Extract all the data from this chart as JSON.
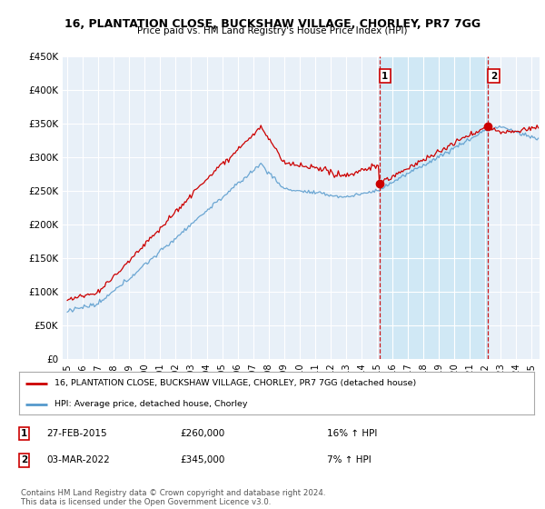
{
  "title": "16, PLANTATION CLOSE, BUCKSHAW VILLAGE, CHORLEY, PR7 7GG",
  "subtitle": "Price paid vs. HM Land Registry's House Price Index (HPI)",
  "legend_line1": "16, PLANTATION CLOSE, BUCKSHAW VILLAGE, CHORLEY, PR7 7GG (detached house)",
  "legend_line2": "HPI: Average price, detached house, Chorley",
  "annotation1_date": "27-FEB-2015",
  "annotation1_price": "£260,000",
  "annotation1_hpi": "16% ↑ HPI",
  "annotation2_date": "03-MAR-2022",
  "annotation2_price": "£345,000",
  "annotation2_hpi": "7% ↑ HPI",
  "footer": "Contains HM Land Registry data © Crown copyright and database right 2024.\nThis data is licensed under the Open Government Licence v3.0.",
  "property_color": "#cc0000",
  "hpi_color": "#5599cc",
  "vline_color": "#cc0000",
  "fill_color": "#ddeeff",
  "background_color": "#ffffff",
  "plot_bg_color": "#e8f0f8",
  "grid_color": "#ffffff",
  "ylim": [
    0,
    450000
  ],
  "yticks": [
    0,
    50000,
    100000,
    150000,
    200000,
    250000,
    300000,
    350000,
    400000,
    450000
  ],
  "xlabel_years": [
    "1995",
    "1996",
    "1997",
    "1998",
    "1999",
    "2000",
    "2001",
    "2002",
    "2003",
    "2004",
    "2005",
    "2006",
    "2007",
    "2008",
    "2009",
    "2010",
    "2011",
    "2012",
    "2013",
    "2014",
    "2015",
    "2016",
    "2017",
    "2018",
    "2019",
    "2020",
    "2021",
    "2022",
    "2023",
    "2024",
    "2025"
  ],
  "sale1_x": 2015.15,
  "sale1_y": 260000,
  "sale2_x": 2022.17,
  "sale2_y": 345000,
  "xmin": 1994.7,
  "xmax": 2025.5
}
